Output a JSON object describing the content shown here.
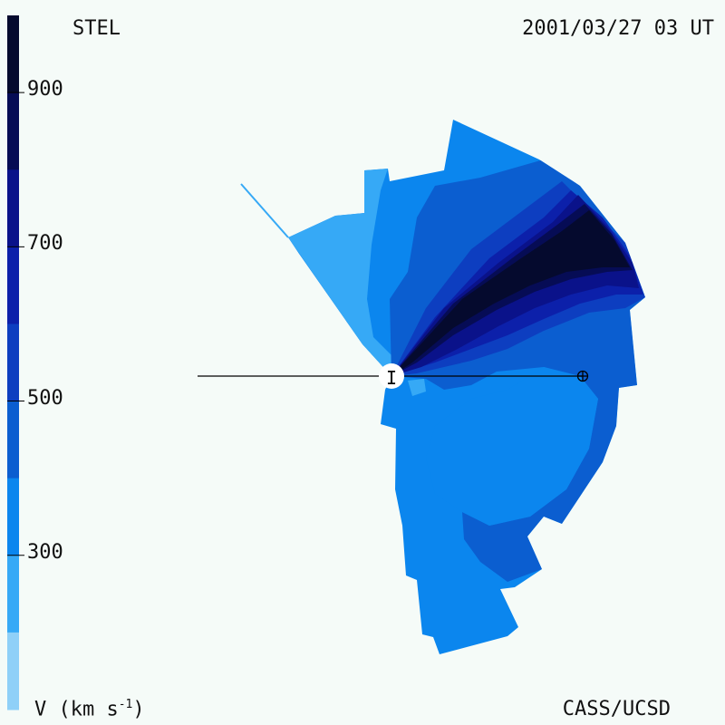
{
  "header": {
    "left_label": "STEL",
    "right_label": "2001/03/27 03 UT"
  },
  "footer": {
    "units_label": "V (km s",
    "units_exponent": "-1",
    "units_close": ")",
    "credit": "CASS/UCSD"
  },
  "colorbar": {
    "ticks": [
      "900",
      "700",
      "500",
      "300"
    ],
    "tick_values": [
      900,
      700,
      500,
      300
    ],
    "min": 200,
    "max": 1000,
    "levels": [
      {
        "from": 900,
        "to": 1000,
        "color": "#050a2e"
      },
      {
        "from": 800,
        "to": 900,
        "color": "#060c55"
      },
      {
        "from": 700,
        "to": 800,
        "color": "#0a128a"
      },
      {
        "from": 600,
        "to": 700,
        "color": "#0c20aa"
      },
      {
        "from": 500,
        "to": 600,
        "color": "#0d3ec0"
      },
      {
        "from": 400,
        "to": 500,
        "color": "#0b5ed0"
      },
      {
        "from": 300,
        "to": 400,
        "color": "#0b86ee"
      },
      {
        "from": 200,
        "to": 300,
        "color": "#36a9f6"
      },
      {
        "from": 100,
        "to": 200,
        "color": "#8fd0f8"
      }
    ]
  },
  "colors": {
    "background": "#f5fbf8",
    "axis_line": "#000000",
    "sun": "#ffffff"
  },
  "markers": {
    "sun_symbol": "I",
    "earth_symbol": "⊕"
  }
}
